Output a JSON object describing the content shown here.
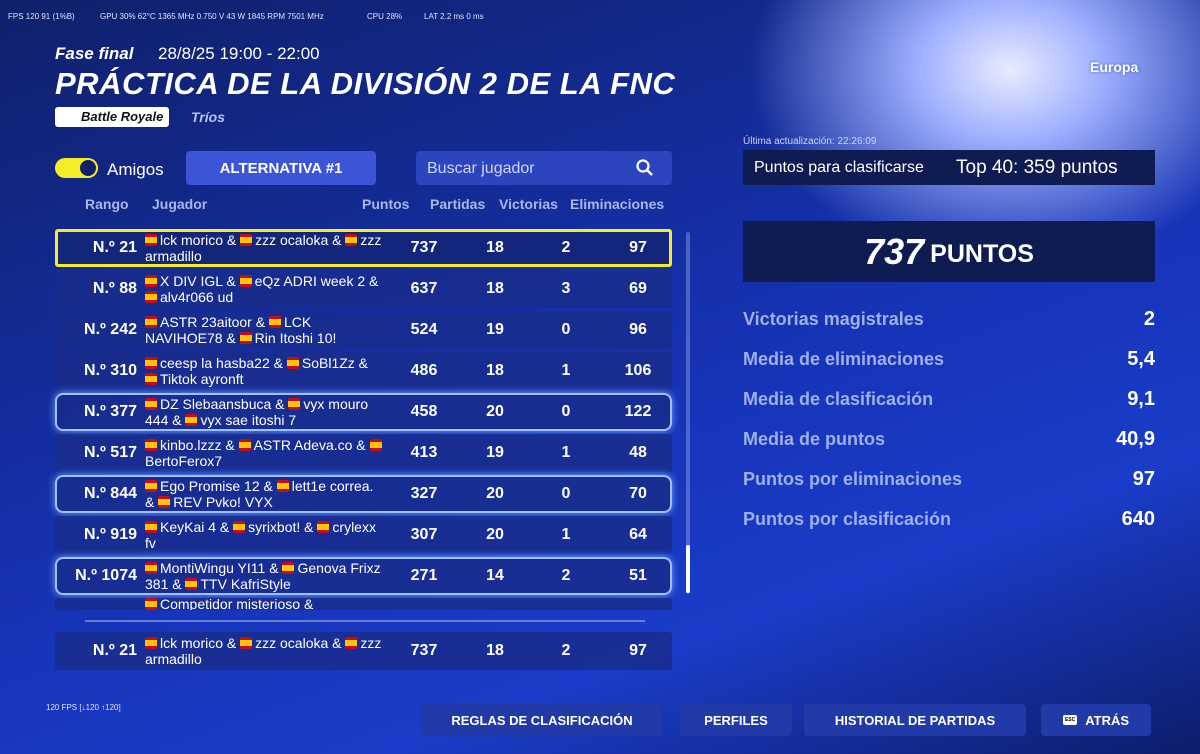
{
  "overlay": {
    "fps": "FPS 120 91 (1%B)",
    "gpu": "GPU 30% 62°C 1365 MHz 0.750 V 43 W 1845 RPM 7501 MHz",
    "cpu": "CPU 28%",
    "lat": "LAT 2.2 ms 0 ms",
    "fps_bottom": "120 FPS [↓120 ↑120]"
  },
  "header": {
    "phase": "Fase final",
    "date": "28/8/25 19:00 - 22:00",
    "title": "PRÁCTICA DE LA DIVISIÓN 2 DE LA FNC",
    "mode": "Battle Royale",
    "team": "Tríos",
    "region": "Europa"
  },
  "controls": {
    "friends": "Amigos",
    "tab": "ALTERNATIVA #1",
    "search": "Buscar jugador"
  },
  "table": {
    "headers": [
      "Rango",
      "Jugador",
      "Puntos",
      "Partidas",
      "Victorias",
      "Eliminaciones"
    ],
    "rows": [
      {
        "rank": "N.º 21",
        "players": [
          "lck morico &",
          "zzz ocaloka &",
          "zzz armadillo"
        ],
        "points": 737,
        "matches": 18,
        "wins": 2,
        "elims": 97,
        "outline": "yellow"
      },
      {
        "rank": "N.º 88",
        "players": [
          "X DIV IGL &",
          "eQz ADRI week 2 &",
          "alv4r066 ud"
        ],
        "points": 637,
        "matches": 18,
        "wins": 3,
        "elims": 69
      },
      {
        "rank": "N.º 242",
        "players": [
          "ASTR 23aitoor &",
          "LCK NAVIHOE78 &",
          "Rin Itoshi 10!"
        ],
        "points": 524,
        "matches": 19,
        "wins": 0,
        "elims": 96
      },
      {
        "rank": "N.º 310",
        "players": [
          "ceesp la hasba22 &",
          "SoBl1Zz &",
          "Tiktok ayronft"
        ],
        "points": 486,
        "matches": 18,
        "wins": 1,
        "elims": 106
      },
      {
        "rank": "N.º 377",
        "players": [
          "DZ Slebaansbuca &",
          "vyx mouro 444 &",
          "vyx sae itoshi 7"
        ],
        "points": 458,
        "matches": 20,
        "wins": 0,
        "elims": 122,
        "outline": "blue"
      },
      {
        "rank": "N.º 517",
        "players": [
          "kinbo.lzzz &",
          "ASTR Adeva.co &",
          "BertoFerox7"
        ],
        "points": 413,
        "matches": 19,
        "wins": 1,
        "elims": 48
      },
      {
        "rank": "N.º 844",
        "players": [
          "Ego Promise 12 &",
          "lett1e correa. &",
          "REV Pvko! VYX"
        ],
        "points": 327,
        "matches": 20,
        "wins": 0,
        "elims": 70,
        "outline": "blue"
      },
      {
        "rank": "N.º 919",
        "players": [
          "KeyKai 4 &",
          "syrixbot! &",
          "crylexx fv"
        ],
        "points": 307,
        "matches": 20,
        "wins": 1,
        "elims": 64
      },
      {
        "rank": "N.º 1074",
        "players": [
          "MontiWingu YI11 &",
          "Genova Frixz 381 &",
          "TTV KafriStyle"
        ],
        "points": 271,
        "matches": 14,
        "wins": 2,
        "elims": 51,
        "outline": "blue"
      },
      {
        "players": [
          "Competidor misterioso &"
        ]
      }
    ],
    "pinned": {
      "rank": "N.º 21",
      "players": [
        "lck morico &",
        "zzz ocaloka &",
        "zzz armadillo"
      ],
      "points": 737,
      "matches": 18,
      "wins": 2,
      "elims": 97
    }
  },
  "summary": {
    "updated": "Última actualización: 22:26:09",
    "qualify_label": "Puntos para clasificarse",
    "qualify_value": "Top 40: 359 puntos",
    "points": "737",
    "points_unit": "PUNTOS",
    "stats": [
      {
        "label": "Victorias magistrales",
        "value": "2"
      },
      {
        "label": "Media de eliminaciones",
        "value": "5,4"
      },
      {
        "label": "Media de clasificación",
        "value": "9,1"
      },
      {
        "label": "Media de puntos",
        "value": "40,9"
      },
      {
        "label": "Puntos por eliminaciones",
        "value": "97"
      },
      {
        "label": "Puntos por clasificación",
        "value": "640"
      }
    ]
  },
  "footer": {
    "buttons": [
      "REGLAS DE CLASIFICACIÓN",
      "PERFILES",
      "HISTORIAL DE PARTIDAS",
      "ATRÁS"
    ],
    "esc": "ESC"
  }
}
